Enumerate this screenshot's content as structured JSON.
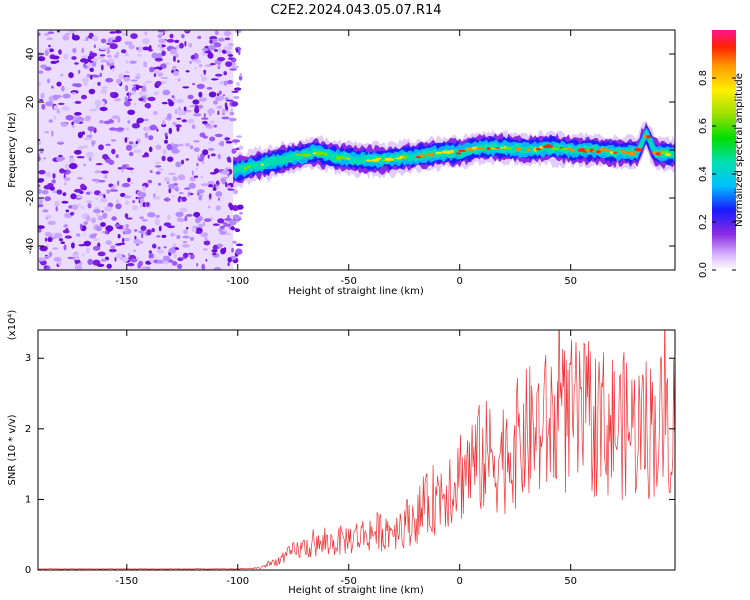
{
  "title": "C2E2.2024.043.05.07.R14",
  "chart_data": [
    {
      "type": "heatmap",
      "xlabel": "Height of straight line (km)",
      "ylabel": "Frequency (Hz)",
      "xlim": [
        -190,
        97
      ],
      "ylim": [
        -50,
        50
      ],
      "xticks": [
        -150,
        -100,
        -50,
        0,
        50
      ],
      "yticks": [
        -40,
        -20,
        0,
        20,
        40
      ],
      "colorbar": {
        "label": "Normalized spectral amplitude",
        "range": [
          0.0,
          1.0
        ],
        "ticks": [
          0.0,
          0.2,
          0.4,
          0.6,
          0.8
        ]
      },
      "signal_band": {
        "x": [
          -102,
          -95,
          -85,
          -75,
          -65,
          -55,
          -45,
          -35,
          -25,
          -15,
          -5,
          0,
          10,
          20,
          30,
          40,
          50,
          60,
          70,
          80,
          84,
          88,
          97
        ],
        "center_freq": [
          -9,
          -7,
          -5,
          -3,
          -1,
          -3,
          -4,
          -4,
          -3,
          -2,
          -1,
          -1,
          1,
          1,
          0,
          1,
          0,
          0,
          -1,
          -1,
          7,
          -1,
          -2
        ]
      },
      "noise_region_xlim": [
        -190,
        -102
      ]
    },
    {
      "type": "line",
      "xlabel": "Height of straight line (km)",
      "ylabel": "SNR (10 * v/v)",
      "y_multiplier": "(x10⁴)",
      "xlim": [
        -190,
        97
      ],
      "ylim": [
        0,
        3.4
      ],
      "xticks": [
        -150,
        -100,
        -50,
        0,
        50
      ],
      "yticks": [
        0,
        1,
        2,
        3
      ],
      "color": "#ee3333",
      "series": [
        {
          "x": [
            -190,
            -120,
            -100,
            -90,
            -80,
            -75,
            -70,
            -60,
            -50,
            -40,
            -30,
            -20,
            -10,
            0,
            10,
            20,
            30,
            40,
            50,
            60,
            70,
            80,
            90,
            97
          ],
          "y": [
            0.01,
            0.01,
            0.01,
            0.03,
            0.15,
            0.25,
            0.3,
            0.35,
            0.42,
            0.5,
            0.55,
            0.7,
            1.0,
            1.3,
            1.5,
            1.55,
            1.8,
            1.95,
            2.05,
            2.0,
            1.95,
            1.9,
            1.95,
            2.0
          ]
        }
      ]
    }
  ]
}
